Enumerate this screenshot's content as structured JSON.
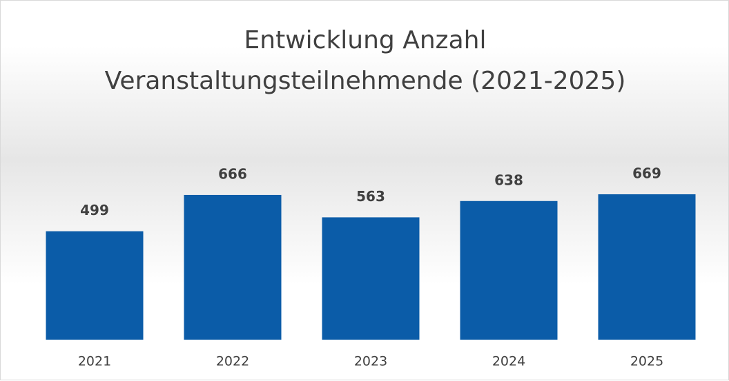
{
  "chart_data": {
    "type": "bar",
    "title": "Entwicklung Anzahl Veranstaltungsteilnehmende (2021-2025)",
    "categories": [
      "2021",
      "2022",
      "2023",
      "2024",
      "2025"
    ],
    "values": [
      499,
      666,
      563,
      638,
      669
    ],
    "color": "#0b5ca8"
  }
}
